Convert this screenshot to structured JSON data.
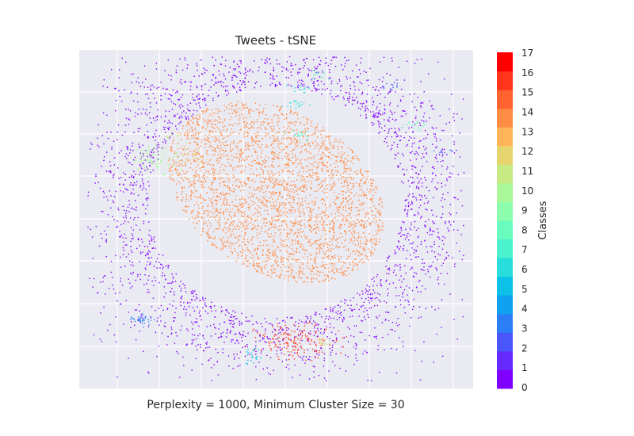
{
  "chart_data": {
    "type": "scatter",
    "title": "Tweets - tSNE",
    "xlabel": "Perplexity = 1000, Minimum Cluster Size = 30",
    "ylabel": "",
    "grid": true,
    "x_ticks_labeled": false,
    "y_ticks_labeled": false,
    "xlim": [
      0,
      100
    ],
    "ylim": [
      0,
      100
    ],
    "colorbar": {
      "label": "Classes",
      "ticks": [
        "0",
        "1",
        "2",
        "3",
        "4",
        "5",
        "6",
        "7",
        "8",
        "9",
        "10",
        "11",
        "12",
        "13",
        "14",
        "15",
        "16",
        "17"
      ],
      "colors": [
        "#8000ff",
        "#6629fe",
        "#4856fb",
        "#2c7ef7",
        "#10a2f0",
        "#0cc0e7",
        "#2adddd",
        "#4cf2ce",
        "#6afbbe",
        "#8cfeac",
        "#aaf899",
        "#c8ea84",
        "#e6d56e",
        "#ffb45a",
        "#ff8c44",
        "#ff6330",
        "#ff341a",
        "#ff0000"
      ]
    },
    "clusters": [
      {
        "label": 0,
        "center": [
          50,
          55
        ],
        "spread": [
          19,
          25
        ],
        "n": 2600,
        "shape": "halo"
      },
      {
        "label": 14,
        "center": [
          50,
          58
        ],
        "spread": [
          26,
          34
        ],
        "n": 3200,
        "shape": "blob"
      },
      {
        "label": 16,
        "center": [
          55,
          14
        ],
        "spread": [
          5,
          2.5
        ],
        "n": 160,
        "shape": "gauss"
      },
      {
        "label": 10,
        "center": [
          19.5,
          68
        ],
        "spread": [
          3,
          2
        ],
        "n": 110,
        "shape": "gauss"
      },
      {
        "label": 12,
        "center": [
          29,
          69
        ],
        "spread": [
          2,
          1.5
        ],
        "n": 30,
        "shape": "gauss"
      },
      {
        "label": 11,
        "center": [
          23.5,
          74.5
        ],
        "spread": [
          1,
          1
        ],
        "n": 15,
        "shape": "gauss"
      },
      {
        "label": 3,
        "center": [
          16,
          20.5
        ],
        "spread": [
          1.6,
          0.8
        ],
        "n": 35,
        "shape": "gauss"
      },
      {
        "label": 5,
        "center": [
          44,
          9
        ],
        "spread": [
          1,
          1.5
        ],
        "n": 22,
        "shape": "gauss"
      },
      {
        "label": 7,
        "center": [
          56,
          75
        ],
        "spread": [
          1.5,
          1
        ],
        "n": 18,
        "shape": "gauss"
      },
      {
        "label": 6,
        "center": [
          55,
          84
        ],
        "spread": [
          1.5,
          0.8
        ],
        "n": 18,
        "shape": "gauss"
      },
      {
        "label": 8,
        "center": [
          61,
          93
        ],
        "spread": [
          1.5,
          0.8
        ],
        "n": 16,
        "shape": "gauss"
      },
      {
        "label": 6,
        "center": [
          55.5,
          88.5
        ],
        "spread": [
          1.5,
          0.6
        ],
        "n": 14,
        "shape": "gauss"
      },
      {
        "label": 8,
        "center": [
          85,
          78
        ],
        "spread": [
          1.5,
          0.8
        ],
        "n": 20,
        "shape": "gauss"
      },
      {
        "label": 2,
        "center": [
          79,
          89.5
        ],
        "spread": [
          1.5,
          0.8
        ],
        "n": 14,
        "shape": "gauss"
      },
      {
        "label": 13,
        "center": [
          61,
          14
        ],
        "spread": [
          1,
          0.8
        ],
        "n": 10,
        "shape": "gauss"
      },
      {
        "label": 11,
        "center": [
          62,
          13
        ],
        "spread": [
          0.8,
          0.6
        ],
        "n": 8,
        "shape": "gauss"
      },
      {
        "label": 2,
        "center": [
          93,
          70
        ],
        "spread": [
          1.5,
          0.4
        ],
        "n": 10,
        "shape": "gauss"
      }
    ]
  }
}
